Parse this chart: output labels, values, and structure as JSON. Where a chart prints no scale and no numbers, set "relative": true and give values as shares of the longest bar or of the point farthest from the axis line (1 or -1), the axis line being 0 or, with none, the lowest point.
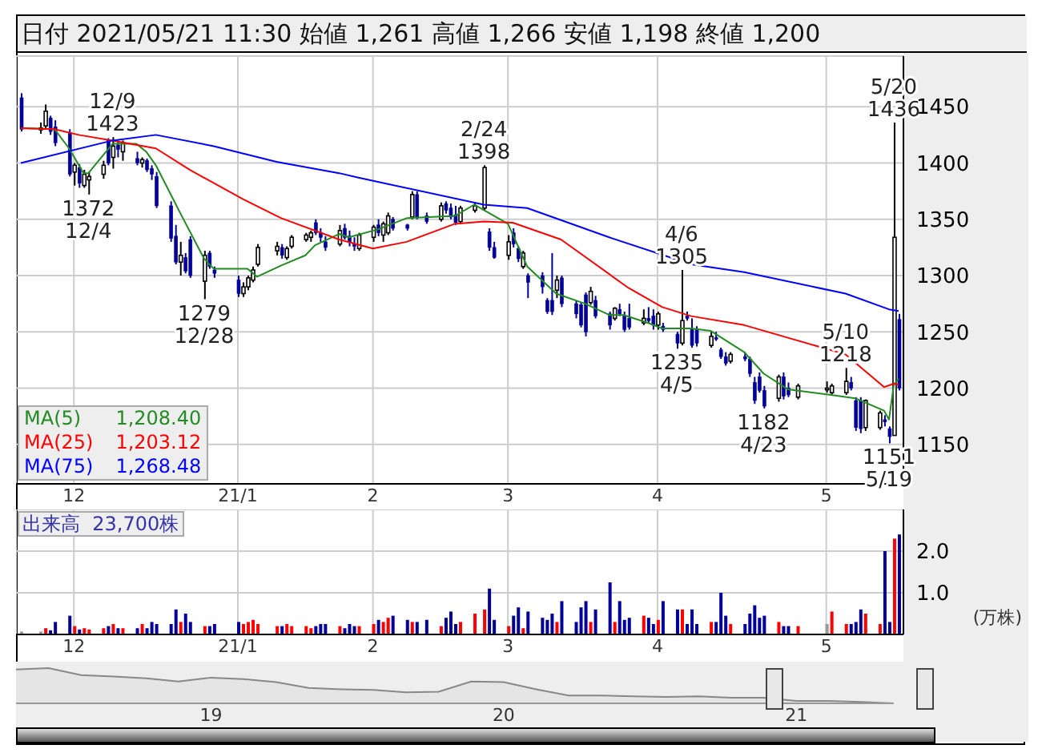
{
  "chart_data": [
    {
      "type": "candlestick",
      "title": "日付 2021/05/21 11:30 始値 1,261 高値 1,266 安値 1,198 終値 1,200",
      "x": [
        "2020-11-20",
        "2020-11-24",
        "2020-11-25",
        "2020-11-26",
        "2020-11-27",
        "2020-11-30",
        "2020-12-01",
        "2020-12-02",
        "2020-12-03",
        "2020-12-04",
        "2020-12-07",
        "2020-12-08",
        "2020-12-09",
        "2020-12-10",
        "2020-12-11",
        "2020-12-14",
        "2020-12-15",
        "2020-12-16",
        "2020-12-17",
        "2020-12-18",
        "2020-12-21",
        "2020-12-22",
        "2020-12-23",
        "2020-12-24",
        "2020-12-25",
        "2020-12-28",
        "2020-12-29",
        "2020-12-30",
        "2021-01-04",
        "2021-01-05",
        "2021-01-06",
        "2021-01-07",
        "2021-01-08",
        "2021-01-12",
        "2021-01-13",
        "2021-01-14",
        "2021-01-15",
        "2021-01-18",
        "2021-01-19",
        "2021-01-20",
        "2021-01-21",
        "2021-01-22",
        "2021-01-25",
        "2021-01-26",
        "2021-01-27",
        "2021-01-28",
        "2021-01-29",
        "2021-02-01",
        "2021-02-02",
        "2021-02-03",
        "2021-02-04",
        "2021-02-05",
        "2021-02-08",
        "2021-02-09",
        "2021-02-10",
        "2021-02-12",
        "2021-02-15",
        "2021-02-16",
        "2021-02-17",
        "2021-02-18",
        "2021-02-19",
        "2021-02-22",
        "2021-02-24",
        "2021-02-25",
        "2021-02-26",
        "2021-03-01",
        "2021-03-02",
        "2021-03-03",
        "2021-03-04",
        "2021-03-05",
        "2021-03-08",
        "2021-03-09",
        "2021-03-10",
        "2021-03-11",
        "2021-03-12",
        "2021-03-15",
        "2021-03-16",
        "2021-03-17",
        "2021-03-18",
        "2021-03-19",
        "2021-03-22",
        "2021-03-23",
        "2021-03-24",
        "2021-03-25",
        "2021-03-26",
        "2021-03-29",
        "2021-03-30",
        "2021-03-31",
        "2021-04-01",
        "2021-04-02",
        "2021-04-05",
        "2021-04-06",
        "2021-04-07",
        "2021-04-08",
        "2021-04-09",
        "2021-04-12",
        "2021-04-13",
        "2021-04-14",
        "2021-04-15",
        "2021-04-16",
        "2021-04-19",
        "2021-04-20",
        "2021-04-21",
        "2021-04-22",
        "2021-04-23",
        "2021-04-26",
        "2021-04-27",
        "2021-04-28",
        "2021-04-30",
        "2021-05-06",
        "2021-05-07",
        "2021-05-10",
        "2021-05-11",
        "2021-05-12",
        "2021-05-13",
        "2021-05-14",
        "2021-05-17",
        "2021-05-18",
        "2021-05-19",
        "2021-05-20",
        "2021-05-21"
      ],
      "ohlc": [
        [
          1458,
          1462,
          1428,
          1430
        ],
        [
          1430,
          1436,
          1426,
          1431
        ],
        [
          1433,
          1452,
          1430,
          1446
        ],
        [
          1440,
          1442,
          1425,
          1428
        ],
        [
          1432,
          1438,
          1415,
          1418
        ],
        [
          1427,
          1430,
          1388,
          1390
        ],
        [
          1392,
          1400,
          1380,
          1398
        ],
        [
          1396,
          1399,
          1378,
          1382
        ],
        [
          1380,
          1394,
          1378,
          1390
        ],
        [
          1385,
          1392,
          1372,
          1388
        ],
        [
          1390,
          1402,
          1386,
          1398
        ],
        [
          1420,
          1422,
          1398,
          1400
        ],
        [
          1405,
          1423,
          1395,
          1415
        ],
        [
          1416,
          1420,
          1405,
          1412
        ],
        [
          1410,
          1420,
          1402,
          1418
        ],
        [
          1404,
          1410,
          1398,
          1400
        ],
        [
          1400,
          1405,
          1396,
          1403
        ],
        [
          1402,
          1404,
          1392,
          1394
        ],
        [
          1395,
          1398,
          1385,
          1390
        ],
        [
          1388,
          1392,
          1360,
          1362
        ],
        [
          1362,
          1366,
          1330,
          1333
        ],
        [
          1335,
          1345,
          1310,
          1312
        ],
        [
          1312,
          1330,
          1300,
          1318
        ],
        [
          1316,
          1320,
          1302,
          1304
        ],
        [
          1332,
          1335,
          1298,
          1300
        ],
        [
          1295,
          1322,
          1279,
          1318
        ],
        [
          1320,
          1322,
          1306,
          1308
        ],
        [
          1305,
          1308,
          1298,
          1302
        ],
        [
          1296,
          1300,
          1281,
          1284
        ],
        [
          1284,
          1294,
          1281,
          1290
        ],
        [
          1290,
          1300,
          1287,
          1298
        ],
        [
          1296,
          1308,
          1294,
          1305
        ],
        [
          1310,
          1328,
          1308,
          1325
        ],
        [
          1322,
          1330,
          1318,
          1326
        ],
        [
          1325,
          1328,
          1315,
          1318
        ],
        [
          1316,
          1326,
          1314,
          1324
        ],
        [
          1326,
          1336,
          1324,
          1334
        ],
        [
          1332,
          1338,
          1330,
          1336
        ],
        [
          1334,
          1340,
          1330,
          1338
        ],
        [
          1347,
          1350,
          1336,
          1338
        ],
        [
          1338,
          1342,
          1330,
          1334
        ],
        [
          1330,
          1335,
          1322,
          1325
        ],
        [
          1328,
          1345,
          1326,
          1340
        ],
        [
          1342,
          1346,
          1332,
          1334
        ],
        [
          1335,
          1340,
          1326,
          1330
        ],
        [
          1328,
          1334,
          1322,
          1326
        ],
        [
          1324,
          1338,
          1322,
          1336
        ],
        [
          1334,
          1345,
          1330,
          1343
        ],
        [
          1345,
          1350,
          1335,
          1338
        ],
        [
          1336,
          1348,
          1330,
          1346
        ],
        [
          1338,
          1356,
          1336,
          1353
        ],
        [
          1350,
          1352,
          1340,
          1342
        ],
        [
          1345,
          1346,
          1340,
          1342
        ],
        [
          1352,
          1375,
          1350,
          1372
        ],
        [
          1372,
          1375,
          1350,
          1352
        ],
        [
          1353,
          1356,
          1346,
          1348
        ],
        [
          1350,
          1365,
          1348,
          1362
        ],
        [
          1364,
          1366,
          1355,
          1358
        ],
        [
          1360,
          1364,
          1350,
          1352
        ],
        [
          1354,
          1362,
          1345,
          1347
        ],
        [
          1348,
          1362,
          1346,
          1360
        ],
        [
          1358,
          1364,
          1356,
          1362
        ],
        [
          1360,
          1398,
          1358,
          1396
        ],
        [
          1339,
          1342,
          1322,
          1325
        ],
        [
          1325,
          1330,
          1315,
          1316
        ],
        [
          1318,
          1336,
          1314,
          1330
        ],
        [
          1338,
          1342,
          1325,
          1328
        ],
        [
          1324,
          1326,
          1312,
          1315
        ],
        [
          1308,
          1322,
          1306,
          1320
        ],
        [
          1300,
          1302,
          1280,
          1294
        ],
        [
          1300,
          1303,
          1284,
          1290
        ],
        [
          1278,
          1280,
          1266,
          1268
        ],
        [
          1278,
          1320,
          1265,
          1268
        ],
        [
          1287,
          1300,
          1280,
          1296
        ],
        [
          1298,
          1300,
          1272,
          1275
        ],
        [
          1275,
          1278,
          1262,
          1266
        ],
        [
          1274,
          1276,
          1254,
          1256
        ],
        [
          1283,
          1285,
          1246,
          1250
        ],
        [
          1276,
          1290,
          1274,
          1286
        ],
        [
          1278,
          1282,
          1262,
          1264
        ],
        [
          1266,
          1268,
          1252,
          1256
        ],
        [
          1262,
          1272,
          1260,
          1271
        ],
        [
          1270,
          1275,
          1264,
          1266
        ],
        [
          1264,
          1268,
          1250,
          1252
        ],
        [
          1262,
          1275,
          1252,
          1254
        ],
        [
          1258,
          1270,
          1256,
          1262
        ],
        [
          1262,
          1272,
          1258,
          1260
        ],
        [
          1264,
          1270,
          1252,
          1256
        ],
        [
          1256,
          1268,
          1252,
          1266
        ],
        [
          1255,
          1258,
          1250,
          1252
        ],
        [
          1248,
          1250,
          1235,
          1240
        ],
        [
          1240,
          1305,
          1238,
          1260
        ],
        [
          1264,
          1268,
          1260,
          1262
        ],
        [
          1252,
          1262,
          1236,
          1238
        ],
        [
          1252,
          1255,
          1237,
          1240
        ],
        [
          1238,
          1250,
          1236,
          1246
        ],
        [
          1245,
          1250,
          1242,
          1244
        ],
        [
          1234,
          1236,
          1226,
          1228
        ],
        [
          1228,
          1232,
          1220,
          1222
        ],
        [
          1224,
          1232,
          1222,
          1230
        ],
        [
          1228,
          1232,
          1224,
          1226
        ],
        [
          1226,
          1228,
          1210,
          1213
        ],
        [
          1205,
          1210,
          1186,
          1189
        ],
        [
          1210,
          1214,
          1196,
          1198
        ],
        [
          1198,
          1202,
          1182,
          1184
        ],
        [
          1191,
          1212,
          1188,
          1210
        ],
        [
          1210,
          1214,
          1190,
          1193
        ],
        [
          1200,
          1205,
          1192,
          1194
        ],
        [
          1192,
          1204,
          1190,
          1202
        ],
        [
          1200,
          1206,
          1196,
          1200
        ],
        [
          1196,
          1204,
          1194,
          1202
        ],
        [
          1196,
          1218,
          1194,
          1206
        ],
        [
          1205,
          1210,
          1198,
          1200
        ],
        [
          1189,
          1192,
          1162,
          1165
        ],
        [
          1189,
          1192,
          1160,
          1164
        ],
        [
          1165,
          1190,
          1162,
          1189
        ],
        [
          1165,
          1180,
          1163,
          1178
        ],
        [
          1172,
          1176,
          1166,
          1170
        ],
        [
          1164,
          1166,
          1151,
          1157
        ],
        [
          1158,
          1436,
          1158,
          1334
        ],
        [
          1261,
          1266,
          1198,
          1200
        ]
      ],
      "colors": [
        "#000099",
        "#ffffff",
        "#ffffff",
        "#000099",
        "#000099",
        "#000099",
        "#ffffff",
        "#000099",
        "#ffffff",
        "#ffffff",
        "#ffffff",
        "#000099",
        "#ffffff",
        "#000099",
        "#ffffff",
        "#000099",
        "#ffffff",
        "#000099",
        "#000099",
        "#000099",
        "#000099",
        "#000099",
        "#ffffff",
        "#000099",
        "#000099",
        "#ffffff",
        "#000099",
        "#000099",
        "#000099",
        "#ffffff",
        "#ffffff",
        "#ffffff",
        "#ffffff",
        "#ffffff",
        "#000099",
        "#ffffff",
        "#ffffff",
        "#ffffff",
        "#ffffff",
        "#000099",
        "#000099",
        "#000099",
        "#ffffff",
        "#000099",
        "#000099",
        "#000099",
        "#ffffff",
        "#ffffff",
        "#000099",
        "#ffffff",
        "#ffffff",
        "#000099",
        "#000099",
        "#ffffff",
        "#000099",
        "#000099",
        "#ffffff",
        "#000099",
        "#000099",
        "#000099",
        "#ffffff",
        "#ffffff",
        "#ffffff",
        "#000099",
        "#000099",
        "#ffffff",
        "#000099",
        "#000099",
        "#ffffff",
        "#000099",
        "#000099",
        "#000099",
        "#000099",
        "#ffffff",
        "#000099",
        "#000099",
        "#000099",
        "#000099",
        "#ffffff",
        "#000099",
        "#000099",
        "#ffffff",
        "#000099",
        "#000099",
        "#000099",
        "#ffffff",
        "#000099",
        "#000099",
        "#ffffff",
        "#000099",
        "#000099",
        "#ffffff",
        "#000099",
        "#000099",
        "#000099",
        "#ffffff",
        "#000099",
        "#000099",
        "#000099",
        "#ffffff",
        "#000099",
        "#000099",
        "#000099",
        "#000099",
        "#000099",
        "#ffffff",
        "#000099",
        "#000099",
        "#ffffff",
        "#ffffff",
        "#ffffff",
        "#ffffff",
        "#000099",
        "#000099",
        "#000099",
        "#ffffff",
        "#ffffff",
        "#000099",
        "#000099",
        "#ffffff",
        "#000099"
      ],
      "series": [
        {
          "name": "MA(5)",
          "type": "line",
          "color": "#228b22",
          "x": [
            "2020-11-20",
            "2020-11-27",
            "2020-11-30",
            "2020-12-03",
            "2020-12-04",
            "2020-12-09",
            "2020-12-14",
            "2020-12-16",
            "2020-12-18",
            "2020-12-23",
            "2020-12-28",
            "2020-12-30",
            "2021-01-06",
            "2021-01-08",
            "2021-01-13",
            "2021-01-18",
            "2021-01-20",
            "2021-01-25",
            "2021-01-27",
            "2021-02-02",
            "2021-02-08",
            "2021-02-18",
            "2021-02-22",
            "2021-03-01",
            "2021-03-05",
            "2021-03-11",
            "2021-03-17",
            "2021-03-22",
            "2021-03-25",
            "2021-03-30",
            "2021-04-02",
            "2021-04-08",
            "2021-04-12",
            "2021-04-19",
            "2021-04-23",
            "2021-04-28",
            "2021-05-07",
            "2021-05-12",
            "2021-05-18",
            "2021-05-19",
            "2021-05-20",
            "2021-05-21"
          ],
          "values": [
            1431,
            1430,
            1413,
            1391,
            1391,
            1417,
            1417,
            1410,
            1398,
            1356,
            1315,
            1306,
            1306,
            1299,
            1309,
            1318,
            1327,
            1337,
            1334,
            1341,
            1351,
            1353,
            1363,
            1346,
            1308,
            1284,
            1275,
            1265,
            1265,
            1258,
            1253,
            1253,
            1251,
            1232,
            1213,
            1199,
            1194,
            1191,
            1180,
            1172,
            1203,
            1208.4
          ]
        },
        {
          "name": "MA(25)",
          "type": "line",
          "color": "#ff0000",
          "x": [
            "2020-11-20",
            "2020-11-27",
            "2020-12-02",
            "2020-12-09",
            "2020-12-18",
            "2020-12-25",
            "2021-01-05",
            "2021-01-13",
            "2021-01-25",
            "2021-02-01",
            "2021-02-08",
            "2021-02-18",
            "2021-02-24",
            "2021-03-02",
            "2021-03-12",
            "2021-03-26",
            "2021-04-02",
            "2021-04-08",
            "2021-04-19",
            "2021-05-10",
            "2021-05-18",
            "2021-05-20",
            "2021-05-21"
          ],
          "values": [
            1431,
            1430,
            1425,
            1420,
            1413,
            1394,
            1368,
            1351,
            1332,
            1324,
            1330,
            1346,
            1348,
            1347,
            1332,
            1289,
            1272,
            1264,
            1256,
            1230,
            1201,
            1204,
            1203.12
          ]
        },
        {
          "name": "MA(75)",
          "type": "line",
          "color": "#0000ff",
          "x": [
            "2020-11-20",
            "2020-12-09",
            "2020-12-18",
            "2020-12-30",
            "2021-01-12",
            "2021-01-25",
            "2021-01-29",
            "2021-02-24",
            "2021-03-05",
            "2021-03-22",
            "2021-04-08",
            "2021-04-19",
            "2021-05-10",
            "2021-05-19",
            "2021-05-21"
          ],
          "values": [
            1400,
            1420,
            1425,
            1415,
            1401,
            1391,
            1387,
            1363,
            1360,
            1334,
            1310,
            1303,
            1284,
            1270,
            1268.48
          ]
        }
      ],
      "ylim": [
        1115,
        1495
      ],
      "yticks": [
        1150,
        1200,
        1250,
        1300,
        1350,
        1400,
        1450
      ],
      "xlim": [
        "2020-11-19",
        "2021-05-22"
      ],
      "xticks": [
        {
          "value": "2020-12-01",
          "label": "12"
        },
        {
          "value": "2021-01-04",
          "label": "21/1"
        },
        {
          "value": "2021-02-01",
          "label": "2"
        },
        {
          "value": "2021-03-01",
          "label": "3"
        },
        {
          "value": "2021-04-01",
          "label": "4"
        },
        {
          "value": "2021-05-06",
          "label": "5"
        }
      ],
      "grid": true,
      "legend": "bottom left",
      "annotations": [
        {
          "text": "12/9\n1423",
          "x": "2020-12-09",
          "y": 1423
        },
        {
          "text": "1372\n12/4",
          "x": "2020-12-04",
          "y": 1372
        },
        {
          "text": "1279\n12/28",
          "x": "2020-12-28",
          "y": 1279
        },
        {
          "text": "2/24\n1398",
          "x": "2021-02-24",
          "y": 1398
        },
        {
          "text": "4/6\n1305",
          "x": "2021-04-06",
          "y": 1305
        },
        {
          "text": "1235\n4/5",
          "x": "2021-04-05",
          "y": 1235
        },
        {
          "text": "1182\n4/23",
          "x": "2021-04-23",
          "y": 1182
        },
        {
          "text": "5/10\n1218",
          "x": "2021-05-10",
          "y": 1218
        },
        {
          "text": "1151\n5/19",
          "x": "2021-05-19",
          "y": 1151
        },
        {
          "text": "5/20\n1436",
          "x": "2021-05-20",
          "y": 1436
        },
        "1,208.40",
        "1,203.12",
        "1,268.48"
      ]
    },
    {
      "type": "bar",
      "x": [
        "2020-11-20",
        "2020-11-24",
        "2020-11-25",
        "2020-11-26",
        "2020-11-27",
        "2020-11-30",
        "2020-12-01",
        "2020-12-02",
        "2020-12-03",
        "2020-12-04",
        "2020-12-07",
        "2020-12-08",
        "2020-12-09",
        "2020-12-10",
        "2020-12-11",
        "2020-12-14",
        "2020-12-15",
        "2020-12-16",
        "2020-12-17",
        "2020-12-18",
        "2020-12-21",
        "2020-12-22",
        "2020-12-23",
        "2020-12-24",
        "2020-12-25",
        "2020-12-28",
        "2020-12-29",
        "2020-12-30",
        "2021-01-04",
        "2021-01-05",
        "2021-01-06",
        "2021-01-07",
        "2021-01-08",
        "2021-01-12",
        "2021-01-13",
        "2021-01-14",
        "2021-01-15",
        "2021-01-18",
        "2021-01-19",
        "2021-01-20",
        "2021-01-21",
        "2021-01-22",
        "2021-01-25",
        "2021-01-26",
        "2021-01-27",
        "2021-01-28",
        "2021-01-29",
        "2021-02-01",
        "2021-02-02",
        "2021-02-03",
        "2021-02-04",
        "2021-02-05",
        "2021-02-08",
        "2021-02-09",
        "2021-02-10",
        "2021-02-12",
        "2021-02-15",
        "2021-02-16",
        "2021-02-17",
        "2021-02-18",
        "2021-02-19",
        "2021-02-22",
        "2021-02-24",
        "2021-02-25",
        "2021-02-26",
        "2021-03-01",
        "2021-03-02",
        "2021-03-03",
        "2021-03-04",
        "2021-03-05",
        "2021-03-08",
        "2021-03-09",
        "2021-03-10",
        "2021-03-11",
        "2021-03-12",
        "2021-03-15",
        "2021-03-16",
        "2021-03-17",
        "2021-03-18",
        "2021-03-19",
        "2021-03-22",
        "2021-03-23",
        "2021-03-24",
        "2021-03-25",
        "2021-03-26",
        "2021-03-29",
        "2021-03-30",
        "2021-03-31",
        "2021-04-01",
        "2021-04-02",
        "2021-04-05",
        "2021-04-06",
        "2021-04-07",
        "2021-04-08",
        "2021-04-09",
        "2021-04-12",
        "2021-04-13",
        "2021-04-14",
        "2021-04-15",
        "2021-04-16",
        "2021-04-19",
        "2021-04-20",
        "2021-04-21",
        "2021-04-22",
        "2021-04-23",
        "2021-04-26",
        "2021-04-27",
        "2021-04-28",
        "2021-04-30",
        "2021-05-06",
        "2021-05-07",
        "2021-05-10",
        "2021-05-11",
        "2021-05-12",
        "2021-05-13",
        "2021-05-14",
        "2021-05-17",
        "2021-05-18",
        "2021-05-19",
        "2021-05-20",
        "2021-05-21"
      ],
      "values": [
        0.07,
        0.07,
        0.15,
        0.1,
        0.3,
        0.45,
        0.2,
        0.12,
        0.15,
        0.12,
        0.15,
        0.2,
        0.25,
        0.15,
        0.15,
        0.15,
        0.25,
        0.15,
        0.3,
        0.25,
        0.25,
        0.6,
        0.3,
        0.5,
        0.3,
        0.2,
        0.2,
        0.25,
        0.3,
        0.25,
        0.3,
        0.35,
        0.25,
        0.2,
        0.2,
        0.25,
        0.2,
        0.2,
        0.15,
        0.2,
        0.25,
        0.25,
        0.2,
        0.15,
        0.25,
        0.2,
        0.2,
        0.25,
        0.35,
        0.3,
        0.4,
        0.45,
        0.35,
        0.3,
        0.3,
        0.35,
        0.2,
        0.4,
        0.55,
        0.25,
        0.3,
        0.5,
        0.6,
        1.1,
        0.35,
        0.2,
        0.45,
        0.65,
        0.15,
        0.55,
        0.4,
        0.35,
        0.5,
        0.3,
        0.8,
        0.3,
        0.65,
        0.8,
        0.3,
        0.6,
        1.25,
        0.3,
        0.8,
        0.35,
        0.4,
        0.45,
        0.4,
        0.25,
        0.35,
        0.8,
        0.6,
        0.6,
        0.25,
        0.6,
        0.25,
        0.3,
        0.3,
        1.0,
        0.45,
        0.25,
        0.25,
        0.5,
        0.7,
        0.4,
        0.45,
        0.3,
        0.2,
        0.2,
        0.2,
        0.25,
        0.55,
        0.25,
        0.25,
        0.3,
        0.6,
        0.5,
        0.25,
        2.0,
        0.3,
        2.3,
        2.4
      ],
      "colors": [
        "#999999",
        "#999999",
        "#ff0000",
        "#000099",
        "#000099",
        "#000099",
        "#ff0000",
        "#000099",
        "#ff0000",
        "#ff0000",
        "#ff0000",
        "#000099",
        "#ff0000",
        "#000099",
        "#ff0000",
        "#000099",
        "#ff0000",
        "#000099",
        "#000099",
        "#000099",
        "#000099",
        "#000099",
        "#ff0000",
        "#000099",
        "#000099",
        "#ff0000",
        "#000099",
        "#000099",
        "#000099",
        "#ff0000",
        "#ff0000",
        "#ff0000",
        "#ff0000",
        "#ff0000",
        "#000099",
        "#ff0000",
        "#ff0000",
        "#ff0000",
        "#ff0000",
        "#000099",
        "#000099",
        "#000099",
        "#ff0000",
        "#000099",
        "#000099",
        "#000099",
        "#ff0000",
        "#ff0000",
        "#000099",
        "#ff0000",
        "#ff0000",
        "#000099",
        "#000099",
        "#ff0000",
        "#000099",
        "#000099",
        "#ff0000",
        "#000099",
        "#000099",
        "#000099",
        "#ff0000",
        "#ff0000",
        "#ff0000",
        "#000099",
        "#000099",
        "#ff0000",
        "#000099",
        "#000099",
        "#ff0000",
        "#000099",
        "#000099",
        "#000099",
        "#000099",
        "#ff0000",
        "#000099",
        "#000099",
        "#000099",
        "#000099",
        "#ff0000",
        "#000099",
        "#000099",
        "#ff0000",
        "#000099",
        "#000099",
        "#000099",
        "#ff0000",
        "#000099",
        "#000099",
        "#ff0000",
        "#000099",
        "#000099",
        "#ff0000",
        "#000099",
        "#000099",
        "#000099",
        "#ff0000",
        "#000099",
        "#000099",
        "#000099",
        "#ff0000",
        "#000099",
        "#000099",
        "#000099",
        "#000099",
        "#000099",
        "#ff0000",
        "#000099",
        "#000099",
        "#ff0000",
        "#999999",
        "#ff0000",
        "#ff0000",
        "#000099",
        "#000099",
        "#000099",
        "#ff0000",
        "#ff0000",
        "#000099",
        "#000099",
        "#ff0000",
        "#000099"
      ],
      "ylim": [
        0,
        3
      ],
      "xlim": [
        "2020-11-19",
        "2021-05-22"
      ],
      "yticks": [
        {
          "value": 1,
          "label": "1.0"
        },
        {
          "value": 2,
          "label": "2.0"
        }
      ],
      "xticks": [
        {
          "value": "2020-12-01",
          "label": "12"
        },
        {
          "value": "2021-01-04",
          "label": "21/1"
        },
        {
          "value": "2021-02-01",
          "label": "2"
        },
        {
          "value": "2021-03-01",
          "label": "3"
        },
        {
          "value": "2021-04-01",
          "label": "4"
        },
        {
          "value": "2021-05-06",
          "label": "5"
        }
      ],
      "ylabel": "(万株)",
      "grid": true,
      "annotations": [
        "出来高  23,700株"
      ]
    },
    {
      "type": "area",
      "relative": true,
      "color": "#888888",
      "categories": [
        null,
        null,
        null,
        null,
        null,
        null,
        "19",
        null,
        null,
        null,
        null,
        null,
        null,
        null,
        null,
        "20",
        null,
        null,
        null,
        null,
        null,
        null,
        null,
        null,
        "21",
        null,
        null,
        null
      ],
      "values": [
        0.96,
        1,
        0.8,
        0.76,
        0.71,
        0.62,
        0.73,
        0.69,
        0.6,
        0.44,
        0.4,
        0.38,
        0.31,
        0.33,
        0.62,
        0.6,
        0.4,
        0.22,
        0.22,
        0.2,
        0.18,
        0.2,
        0.16,
        0.16,
        0.07,
        0.07,
        0.04,
        0
      ]
    }
  ]
}
